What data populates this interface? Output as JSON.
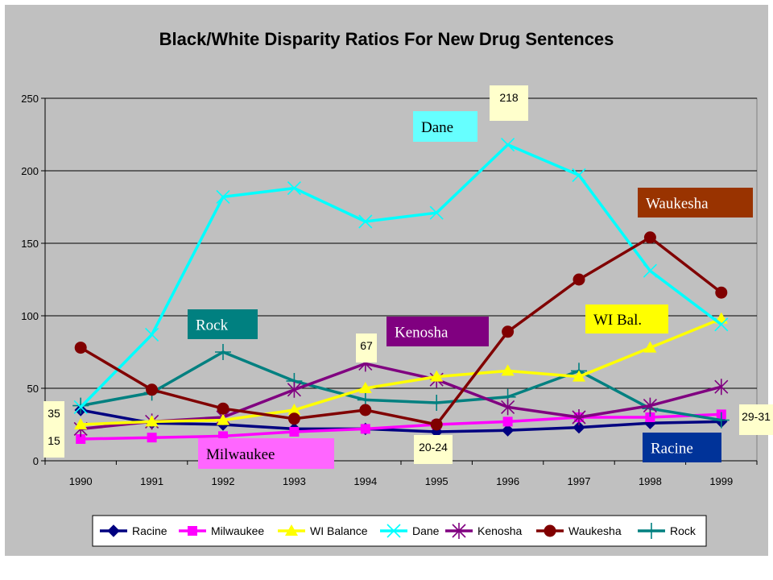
{
  "chart_data": {
    "type": "line",
    "title": "Black/White Disparity Ratios For New Drug Sentences",
    "xlabel": "",
    "ylabel": "",
    "ylim": [
      0,
      250
    ],
    "yticks": [
      0,
      50,
      100,
      150,
      200,
      250
    ],
    "grid": true,
    "legend_position": "bottom",
    "x": [
      "1990",
      "1991",
      "1992",
      "1993",
      "1994",
      "1995",
      "1996",
      "1997",
      "1998",
      "1999"
    ],
    "series": [
      {
        "name": "Racine",
        "color": "#000080",
        "marker": "diamond",
        "values": [
          35,
          26,
          25,
          22,
          22,
          20,
          21,
          23,
          26,
          27
        ]
      },
      {
        "name": "Milwaukee",
        "color": "#ff00ff",
        "marker": "square",
        "values": [
          15,
          16,
          17,
          20,
          22,
          25,
          27,
          30,
          30,
          32
        ]
      },
      {
        "name": "WI Balance",
        "color": "#ffff00",
        "marker": "triangle",
        "values": [
          25,
          27,
          28,
          35,
          50,
          58,
          62,
          58,
          78,
          98
        ]
      },
      {
        "name": "Dane",
        "color": "#00ffff",
        "marker": "x",
        "values": [
          37,
          87,
          182,
          188,
          165,
          171,
          218,
          197,
          131,
          94
        ]
      },
      {
        "name": "Kenosha",
        "color": "#800080",
        "marker": "star",
        "values": [
          22,
          27,
          30,
          49,
          67,
          56,
          37,
          30,
          38,
          51
        ]
      },
      {
        "name": "Waukesha",
        "color": "#800000",
        "marker": "circle",
        "values": [
          78,
          49,
          36,
          29,
          35,
          25,
          89,
          125,
          154,
          116
        ]
      },
      {
        "name": "Rock",
        "color": "#008080",
        "marker": "plus",
        "values": [
          38,
          47,
          75,
          55,
          42,
          40,
          44,
          62,
          36,
          28
        ]
      }
    ],
    "series_labels": [
      {
        "text": "Dane",
        "bg": "#66ffff",
        "fg": "#000000"
      },
      {
        "text": "Waukesha",
        "bg": "#993300",
        "fg": "#ffffff"
      },
      {
        "text": "Rock",
        "bg": "#008080",
        "fg": "#ffffff"
      },
      {
        "text": "Kenosha",
        "bg": "#800080",
        "fg": "#ffffff"
      },
      {
        "text": "WI Bal.",
        "bg": "#ffff00",
        "fg": "#000000"
      },
      {
        "text": "Milwaukee",
        "bg": "#ff66ff",
        "fg": "#000000"
      },
      {
        "text": "Racine",
        "bg": "#003399",
        "fg": "#ffffff"
      }
    ],
    "annotations": [
      {
        "text": "218",
        "bg": "#ffffcc"
      },
      {
        "text": "67",
        "bg": "#ffffcc"
      },
      {
        "text": "35",
        "bg": "#ffffcc"
      },
      {
        "text": "15",
        "bg": "#ffffcc"
      },
      {
        "text": "20-24",
        "bg": "#ffffcc"
      },
      {
        "text": "29-31",
        "bg": "#ffffcc"
      }
    ]
  }
}
